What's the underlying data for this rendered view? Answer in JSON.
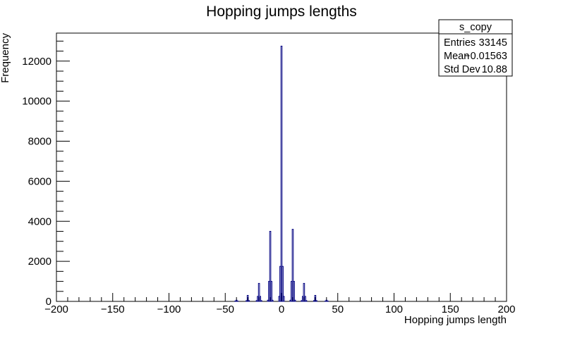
{
  "chart_data": {
    "type": "bar",
    "title": "Hopping jumps lengths",
    "xlabel": "Hopping jumps length",
    "ylabel": "Frequency",
    "xlim": [
      -200,
      200
    ],
    "ylim": [
      0,
      13400
    ],
    "x_ticks": [
      -200,
      -150,
      -100,
      -50,
      0,
      50,
      100,
      150,
      200
    ],
    "x_tick_labels": [
      "−200",
      "−150",
      "−100",
      "−50",
      "0",
      "50",
      "100",
      "150",
      "200"
    ],
    "y_ticks": [
      0,
      2000,
      4000,
      6000,
      8000,
      10000,
      12000
    ],
    "y_tick_labels": [
      "0",
      "2000",
      "4000",
      "6000",
      "8000",
      "10000",
      "12000"
    ],
    "bin_width": 1,
    "line_color": "#000080",
    "series": [
      {
        "bins": [
          [
            -41,
            20
          ],
          [
            -40,
            60
          ],
          [
            -39,
            15
          ],
          [
            -31,
            40
          ],
          [
            -30,
            300
          ],
          [
            -29,
            40
          ],
          [
            -22,
            40
          ],
          [
            -21,
            250
          ],
          [
            -20,
            900
          ],
          [
            -19,
            250
          ],
          [
            -18,
            40
          ],
          [
            -12,
            60
          ],
          [
            -11,
            1000
          ],
          [
            -10,
            3500
          ],
          [
            -9,
            1000
          ],
          [
            -8,
            60
          ],
          [
            -2,
            250
          ],
          [
            -1,
            1750
          ],
          [
            0,
            12750
          ],
          [
            1,
            1750
          ],
          [
            2,
            250
          ],
          [
            8,
            60
          ],
          [
            9,
            1000
          ],
          [
            10,
            3600
          ],
          [
            11,
            1000
          ],
          [
            12,
            60
          ],
          [
            18,
            40
          ],
          [
            19,
            250
          ],
          [
            20,
            900
          ],
          [
            21,
            250
          ],
          [
            22,
            40
          ],
          [
            29,
            40
          ],
          [
            30,
            300
          ],
          [
            31,
            40
          ],
          [
            39,
            15
          ],
          [
            40,
            60
          ],
          [
            41,
            20
          ]
        ]
      }
    ],
    "stats_box": {
      "title": "s_copy",
      "rows": [
        {
          "label": "Entries",
          "value": "33145"
        },
        {
          "label": "Mean",
          "value": "−0.01563"
        },
        {
          "label": "Std Dev",
          "value": "10.88"
        }
      ],
      "position": "top-right"
    },
    "grid": false
  }
}
